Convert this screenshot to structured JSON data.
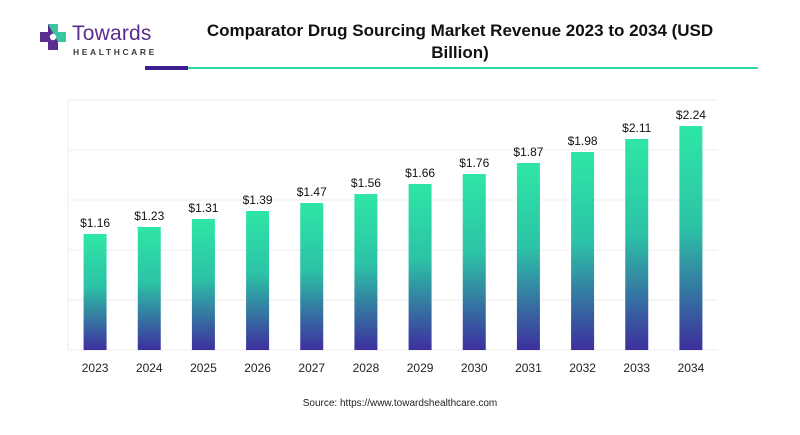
{
  "logo": {
    "brand": "Towards",
    "sub": "HEALTHCARE",
    "colors": {
      "purple": "#5b2d8e",
      "green": "#35d5a4"
    }
  },
  "title": "Comparator Drug Sourcing Market Revenue 2023 to 2034 (USD Billion)",
  "source": "Source: https://www.towardshealthcare.com",
  "colors": {
    "bar_top": "#2ee6a6",
    "bar_bottom": "#3d2f9e",
    "grid": "#eeeeee",
    "rule_purple": "#3b1f8f",
    "rule_teal": "#33d6a6"
  },
  "chart_data": {
    "type": "bar",
    "title": "Comparator Drug Sourcing Market Revenue 2023 to 2034 (USD Billion)",
    "categories": [
      "2023",
      "2024",
      "2025",
      "2026",
      "2027",
      "2028",
      "2029",
      "2030",
      "2031",
      "2032",
      "2033",
      "2034"
    ],
    "values": [
      1.16,
      1.23,
      1.31,
      1.39,
      1.47,
      1.56,
      1.66,
      1.76,
      1.87,
      1.98,
      2.11,
      2.24
    ],
    "data_labels": [
      "$1.16",
      "$1.23",
      "$1.31",
      "$1.39",
      "$1.47",
      "$1.56",
      "$1.66",
      "$1.76",
      "$1.87",
      "$1.98",
      "$2.11",
      "$2.24"
    ],
    "xlabel": "",
    "ylabel": "",
    "ylim": [
      0,
      2.5
    ],
    "grid": true,
    "legend": "none"
  }
}
